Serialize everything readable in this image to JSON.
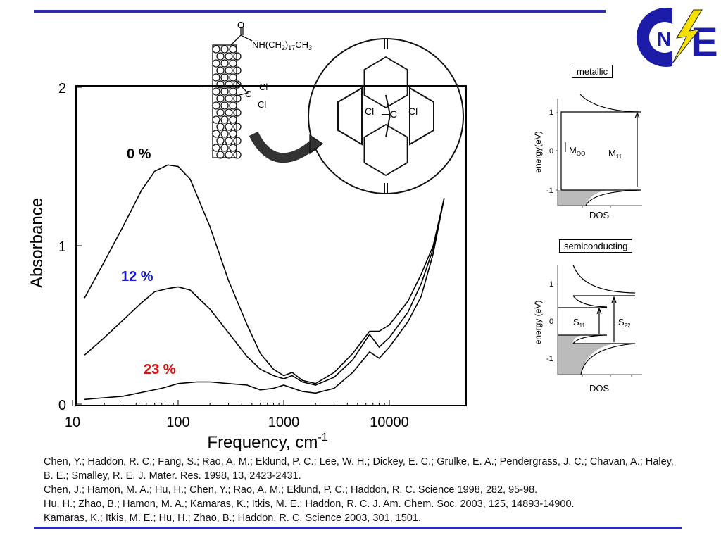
{
  "logo_text": "CNE",
  "chart_data": {
    "type": "line",
    "xlabel": "Frequency, cm",
    "xlabel_superscript": "-1",
    "ylabel": "Absorbance",
    "xscale": "log",
    "xlim": [
      10,
      55000
    ],
    "ylim": [
      0,
      2
    ],
    "xticks": [
      "10",
      "100",
      "1000",
      "10000"
    ],
    "yticks": [
      "0",
      "1",
      "2"
    ],
    "series": [
      {
        "name": "0 %",
        "color": "#000000",
        "x": [
          13,
          20,
          30,
          45,
          60,
          80,
          100,
          130,
          200,
          300,
          450,
          600,
          800,
          1000,
          1200,
          1500,
          2000,
          3000,
          4500,
          6500,
          8000,
          10000,
          15000,
          20000,
          26000,
          33000
        ],
        "y": [
          0.67,
          0.9,
          1.12,
          1.35,
          1.47,
          1.51,
          1.5,
          1.42,
          1.12,
          0.78,
          0.5,
          0.32,
          0.22,
          0.18,
          0.2,
          0.15,
          0.13,
          0.2,
          0.32,
          0.46,
          0.46,
          0.5,
          0.65,
          0.82,
          1.0,
          1.3
        ]
      },
      {
        "name": "12 %",
        "color": "#000000",
        "x": [
          13,
          20,
          30,
          45,
          60,
          80,
          100,
          130,
          200,
          300,
          450,
          600,
          800,
          1000,
          1200,
          1500,
          2000,
          3000,
          4500,
          6500,
          8000,
          10000,
          15000,
          20000,
          26000,
          33000
        ],
        "y": [
          0.31,
          0.42,
          0.53,
          0.64,
          0.71,
          0.73,
          0.74,
          0.72,
          0.6,
          0.45,
          0.3,
          0.22,
          0.18,
          0.16,
          0.18,
          0.14,
          0.12,
          0.17,
          0.28,
          0.44,
          0.36,
          0.42,
          0.58,
          0.76,
          0.98,
          1.3
        ]
      },
      {
        "name": "23 %",
        "color": "#000000",
        "x": [
          13,
          20,
          30,
          50,
          70,
          100,
          150,
          200,
          300,
          450,
          600,
          800,
          1000,
          1500,
          2000,
          3000,
          4500,
          6500,
          8000,
          10000,
          15000,
          20000,
          26000,
          33000
        ],
        "y": [
          0.03,
          0.04,
          0.05,
          0.08,
          0.1,
          0.13,
          0.14,
          0.14,
          0.13,
          0.12,
          0.09,
          0.1,
          0.12,
          0.08,
          0.07,
          0.1,
          0.2,
          0.33,
          0.29,
          0.36,
          0.52,
          0.68,
          0.95,
          1.3
        ]
      }
    ],
    "annotations": [
      {
        "text": "0 %",
        "color": "#000000"
      },
      {
        "text": "12 %",
        "color": "#1a1acc"
      },
      {
        "text": "23 %",
        "color": "#e01010"
      }
    ]
  },
  "molecule": {
    "substituent": "NH(CH2)17CH3",
    "sub_main": "NH(CH",
    "sub_2": "2",
    "sub_mid": ")",
    "sub_17": "17",
    "sub_ch": "CH",
    "sub_3": "3",
    "o": "O",
    "c": "C",
    "cl": "Cl"
  },
  "dos_metallic": {
    "title": "metallic",
    "ylabel": "energy(eV)",
    "xlabel": "DOS",
    "yticks": [
      "1",
      "0",
      "-1"
    ],
    "m00": "M",
    "m00_sub": "OO",
    "m11": "M",
    "m11_sub": "11"
  },
  "dos_semiconducting": {
    "title": "semiconducting",
    "ylabel": "energy (eV)",
    "xlabel": "DOS",
    "yticks": [
      "1",
      "0",
      "-1"
    ],
    "s11": "S",
    "s11_sub": "11",
    "s22": "S",
    "s22_sub": "22"
  },
  "references": [
    "Chen, Y.; Haddon, R. C.; Fang, S.; Rao, A. M.; Eklund, P. C.; Lee, W. H.; Dickey, E. C.; Grulke, E. A.; Pendergrass, J. C.; Chavan, A.; Haley, B. E.; Smalley, R. E. J. Mater. Res. 1998, 13, 2423-2431.",
    "Chen, J.; Hamon, M. A.; Hu, H.; Chen, Y.; Rao, A. M.; Eklund, P. C.; Haddon, R. C. Science 1998, 282, 95-98.",
    "Hu, H.; Zhao, B.; Hamon, M. A.; Kamaras, K.; Itkis, M. E.; Haddon, R. C. J. Am. Chem. Soc. 2003, 125, 14893-14900.",
    "Kamaras, K.; Itkis, M. E.; Hu, H.; Zhao, B.; Haddon, R. C. Science 2003, 301, 1501."
  ]
}
